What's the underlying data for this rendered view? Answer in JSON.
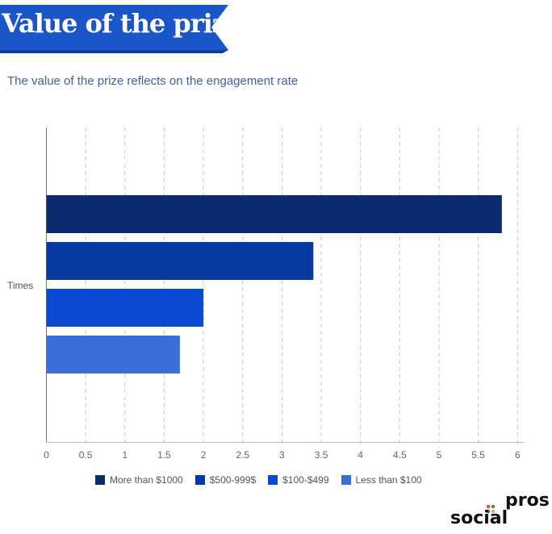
{
  "header": {
    "title": "Value of the prize",
    "banner_color": "#1a56c8",
    "subtitle": "The value of the prize reflects on the engagement rate"
  },
  "chart_data": {
    "type": "bar",
    "orientation": "horizontal",
    "categories": [
      "Times"
    ],
    "series": [
      {
        "name": "More than $1000",
        "values": [
          5.8
        ],
        "color": "#0b2a6f"
      },
      {
        "name": "$500-999$",
        "values": [
          3.4
        ],
        "color": "#08399e"
      },
      {
        "name": "$100-$499",
        "values": [
          2.0
        ],
        "color": "#0a4ad1"
      },
      {
        "name": "Less than $100",
        "values": [
          1.7
        ],
        "color": "#3a6fd8"
      }
    ],
    "xlim": [
      0,
      6
    ],
    "xticks": [
      "0",
      "0.5",
      "1",
      "1.5",
      "2",
      "2.5",
      "3",
      "3.5",
      "4",
      "4.5",
      "5",
      "5.5",
      "6"
    ],
    "grid": "vertical dashed",
    "legend_position": "bottom"
  },
  "logo": {
    "part1": "social",
    "part2": "pros"
  }
}
